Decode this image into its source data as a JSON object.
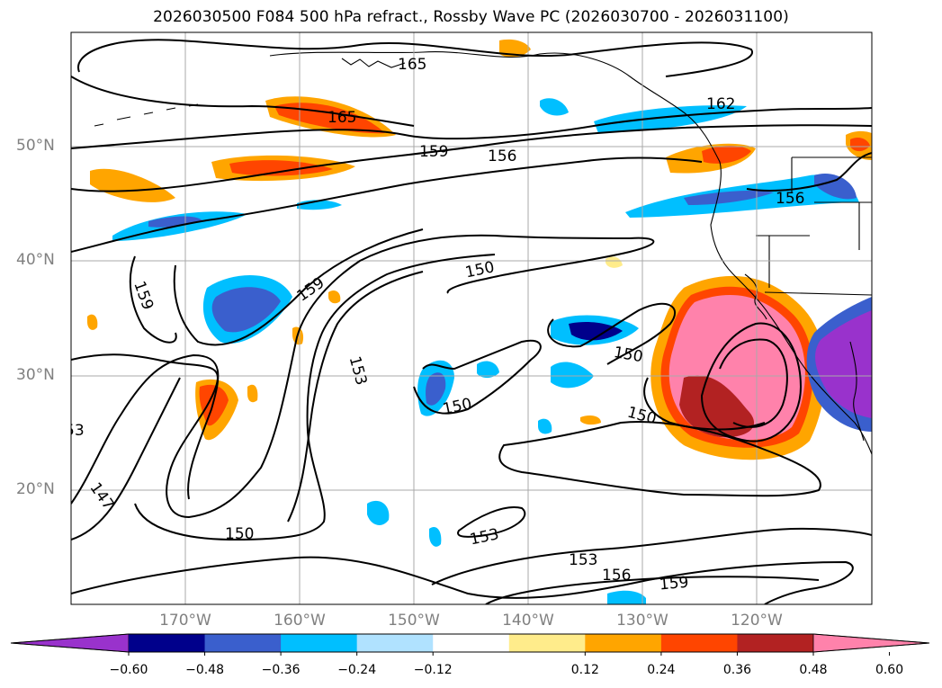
{
  "title": "2026030500 F084 500 hPa refract., Rossby Wave PC (2026030700 - 2026031100)",
  "map": {
    "lat_labels": [
      "50°N",
      "40°N",
      "30°N",
      "20°N"
    ],
    "lon_labels": [
      "170°W",
      "160°W",
      "150°W",
      "140°W",
      "130°W",
      "120°W"
    ],
    "contour_labels": [
      "165",
      "165",
      "162",
      "159",
      "156",
      "156",
      "159",
      "150",
      "159",
      "150",
      "153",
      "150",
      "150",
      "153",
      "153",
      "156",
      "159",
      "150",
      "147",
      "53"
    ]
  },
  "colorbar": {
    "ticks": [
      "−0.60",
      "−0.48",
      "−0.36",
      "−0.24",
      "−0.12",
      "0.12",
      "0.24",
      "0.36",
      "0.48",
      "0.60"
    ],
    "colors": [
      "#9932cc",
      "#00008b",
      "#3a5fcd",
      "#00bfff",
      "#b0e2ff",
      "#ffffff",
      "#ffec8b",
      "#ffa500",
      "#ff4500",
      "#b22222",
      "#ff82ab"
    ]
  }
}
